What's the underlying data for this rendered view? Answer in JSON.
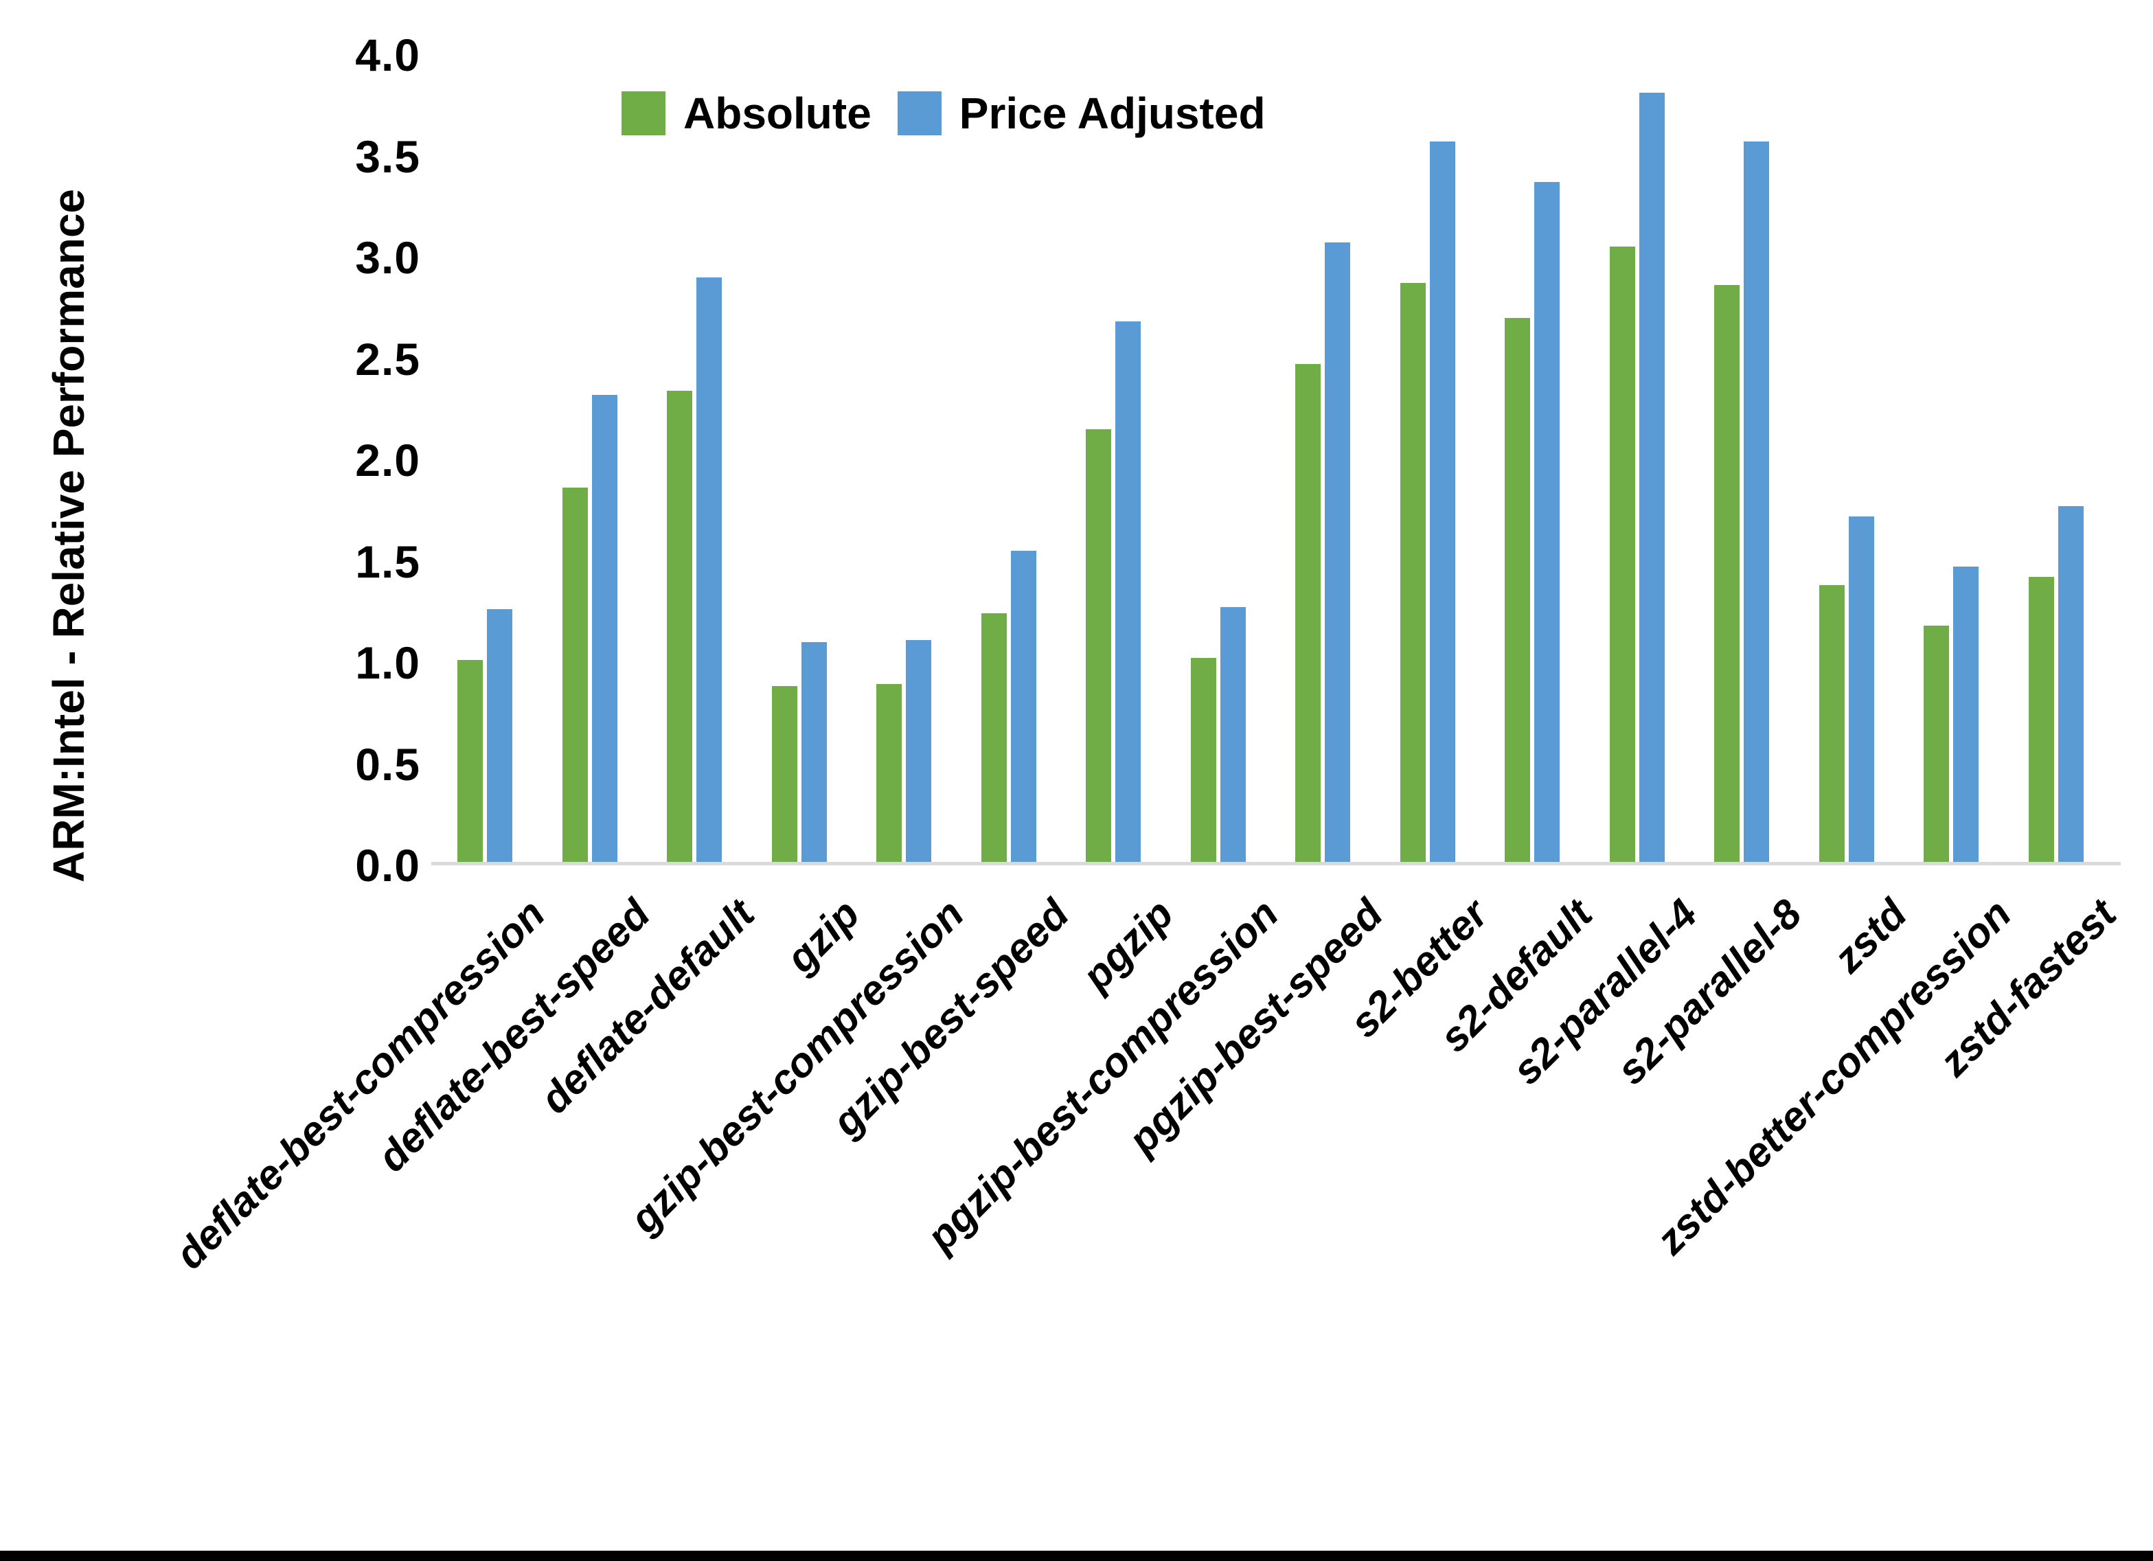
{
  "figure": {
    "y_axis_title": "ARM:Intel - Relative Performance",
    "legend": {
      "absolute_label": "Absolute",
      "price_adjusted_label": "Price Adjusted"
    },
    "colors": {
      "absolute": "#70AD47",
      "price_adjusted": "#5B9BD5",
      "axis_line": "#D9D9D9",
      "text": "#000000",
      "background": "#FFFFFF",
      "bottom_border": "#000000"
    }
  },
  "chart_data": {
    "type": "bar",
    "title": "",
    "xlabel": "",
    "ylabel": "ARM:Intel - Relative Performance",
    "ylim": [
      0.0,
      4.0
    ],
    "ytick_step": 0.5,
    "ytick_labels": [
      "0.0",
      "0.5",
      "1.0",
      "1.5",
      "2.0",
      "2.5",
      "3.0",
      "3.5",
      "4.0"
    ],
    "grid": false,
    "legend_position": "top-center",
    "categories": [
      "deflate-best-compression",
      "deflate-best-speed",
      "deflate-default",
      "gzip",
      "gzip-best-compression",
      "gzip-best-speed",
      "pgzip",
      "pgzip-best-compression",
      "pgzip-best-speed",
      "s2-better",
      "s2-default",
      "s2-parallel-4",
      "s2-parallel-8",
      "zstd",
      "zstd-better-compression",
      "zstd-fastest"
    ],
    "series": [
      {
        "name": "Absolute",
        "color": "#70AD47",
        "values": [
          1.01,
          1.86,
          2.34,
          0.88,
          0.89,
          1.24,
          2.15,
          1.02,
          2.47,
          2.87,
          2.7,
          3.05,
          2.86,
          1.38,
          1.18,
          1.42
        ]
      },
      {
        "name": "Price Adjusted",
        "color": "#5B9BD5",
        "values": [
          1.26,
          2.32,
          2.9,
          1.1,
          1.11,
          1.55,
          2.68,
          1.27,
          3.07,
          3.57,
          3.37,
          3.81,
          3.57,
          1.72,
          1.47,
          1.77
        ]
      }
    ]
  }
}
